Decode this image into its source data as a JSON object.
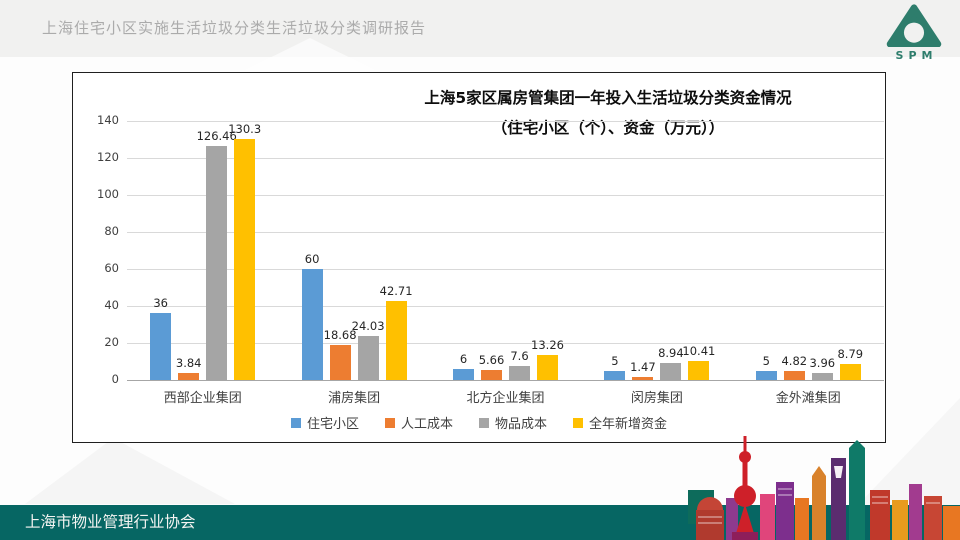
{
  "header": {
    "title": "上海住宅小区实施生活垃圾分类生活垃圾分类调研报告",
    "logo_text": "SPM"
  },
  "footer": {
    "text": "上海市物业管理行业协会"
  },
  "colors": {
    "footer_bar": "#066663",
    "logo_green": "#2E7D6C",
    "series_blue": "#5B9BD5",
    "series_orange": "#ED7D31",
    "series_gray": "#A5A5A5",
    "series_yellow": "#FFC000"
  },
  "chart_data": {
    "type": "bar",
    "title": "上海5家区属房管集团一年投入生活垃圾分类资金情况",
    "subtitle": "（住宅小区（个）、资金（万元））",
    "categories": [
      "西部企业集团",
      "浦房集团",
      "北方企业集团",
      "闵房集团",
      "金外滩集团"
    ],
    "series": [
      {
        "name": "住宅小区",
        "color": "#5B9BD5",
        "values": [
          36,
          60,
          6,
          5,
          5
        ]
      },
      {
        "name": "人工成本",
        "color": "#ED7D31",
        "values": [
          3.84,
          18.68,
          5.66,
          1.47,
          4.82
        ]
      },
      {
        "name": "物品成本",
        "color": "#A5A5A5",
        "values": [
          126.46,
          24.03,
          7.6,
          8.94,
          3.96
        ]
      },
      {
        "name": "全年新增资金",
        "color": "#FFC000",
        "values": [
          130.3,
          42.71,
          13.26,
          10.41,
          8.79
        ]
      }
    ],
    "xlabel": "",
    "ylabel": "",
    "ylim": [
      0,
      140
    ],
    "yticks": [
      0,
      20,
      40,
      60,
      80,
      100,
      120,
      140
    ],
    "grid": true,
    "legend_position": "bottom"
  }
}
